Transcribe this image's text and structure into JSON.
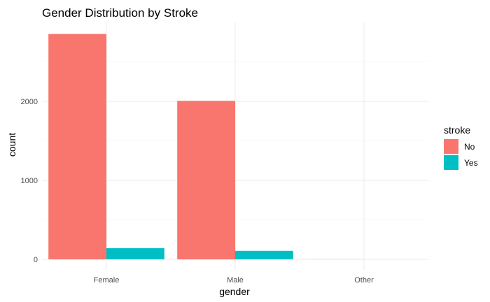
{
  "chart_data": {
    "type": "bar",
    "title": "Gender Distribution by Stroke",
    "xlabel": "gender",
    "ylabel": "count",
    "categories": [
      "Female",
      "Male",
      "Other"
    ],
    "series": [
      {
        "name": "No",
        "color": "#F8766D",
        "values": [
          2853,
          2007,
          1
        ]
      },
      {
        "name": "Yes",
        "color": "#00BFC4",
        "values": [
          141,
          108,
          0
        ]
      }
    ],
    "yticks": [
      0,
      1000,
      2000
    ],
    "ytick_labels": [
      "0",
      "1000",
      "2000"
    ],
    "ylim": [
      0,
      2950
    ],
    "grid": true,
    "legend": {
      "title": "stroke",
      "position": "right"
    }
  }
}
